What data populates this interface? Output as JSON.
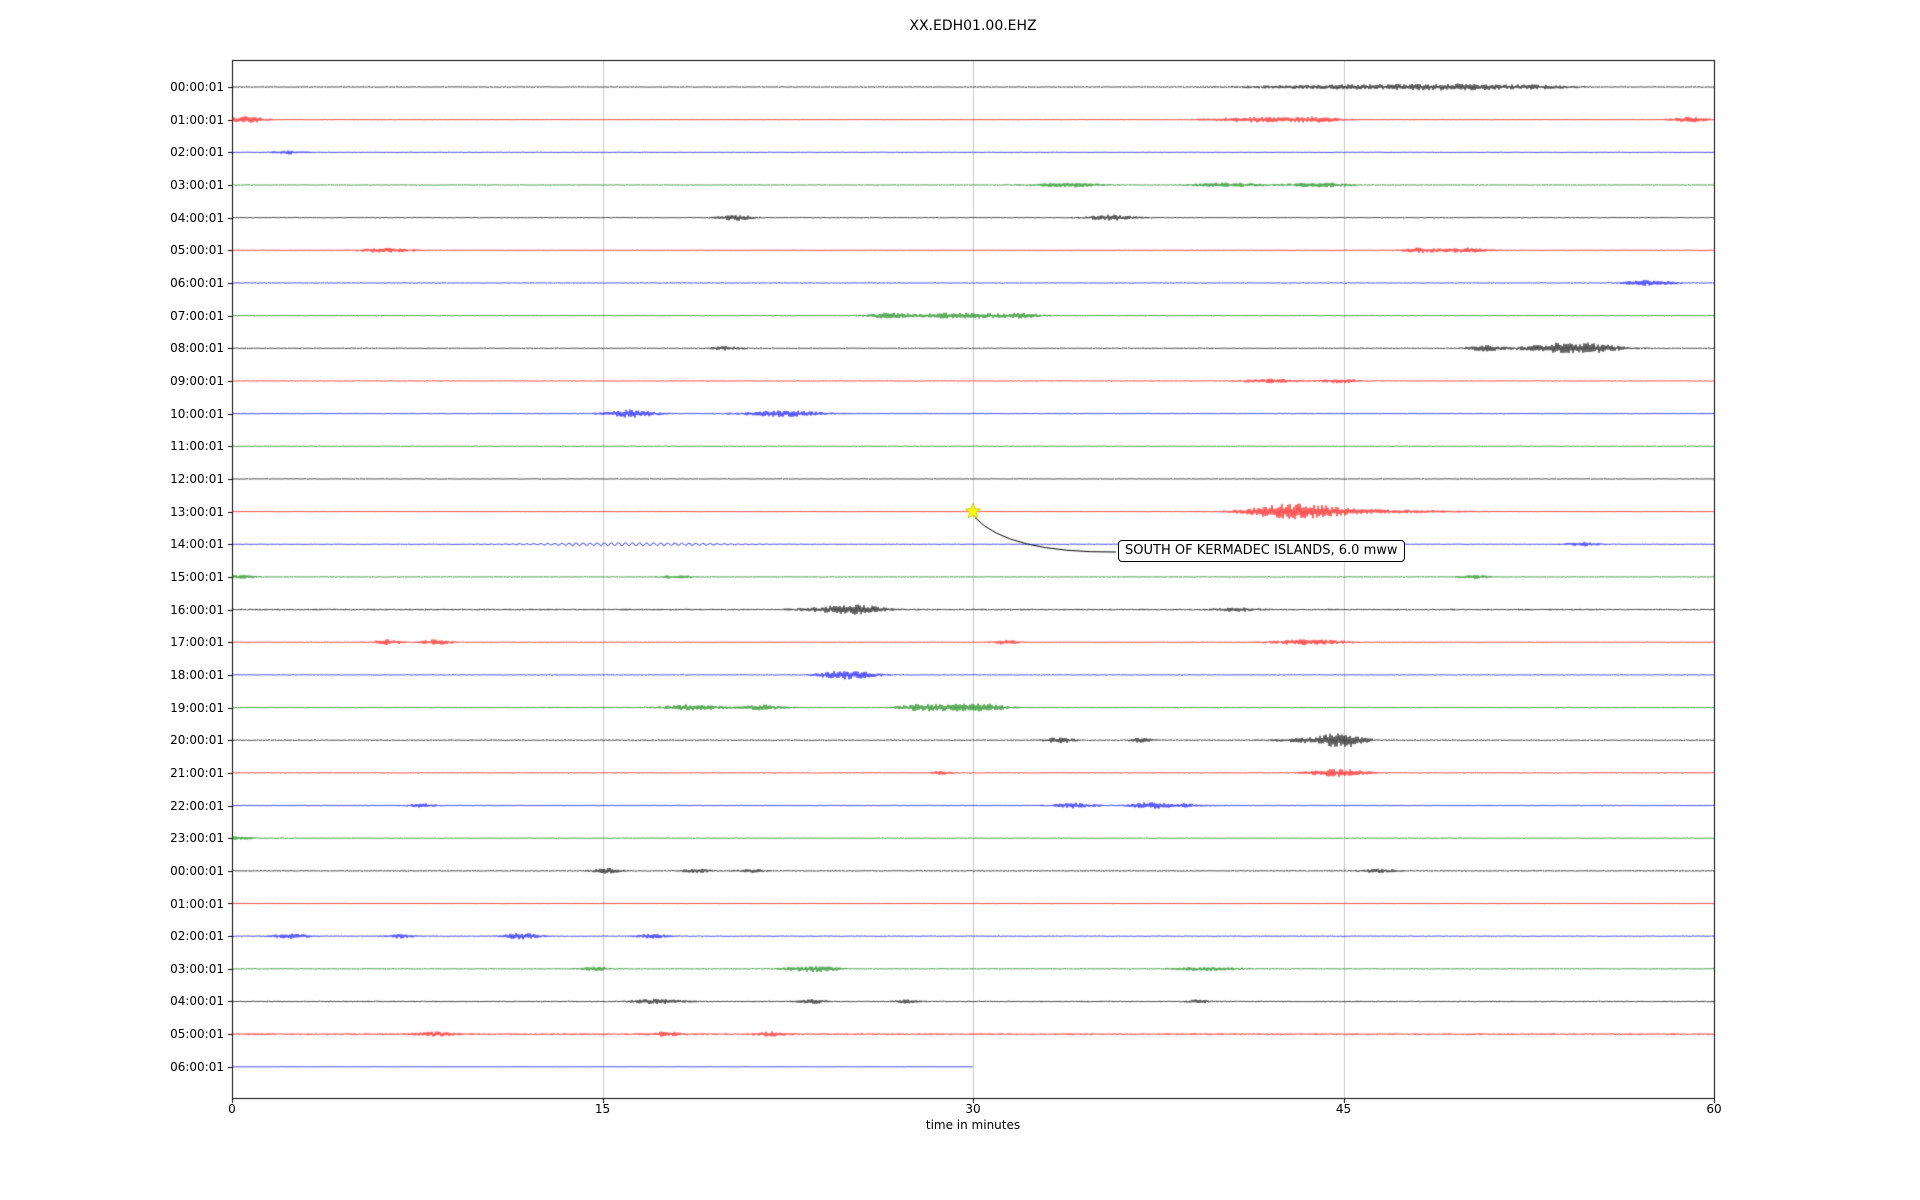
{
  "figure": {
    "title": "XX.EDH01.00.EHZ"
  },
  "chart_data": {
    "type": "line",
    "subtype": "seismogram-dayplot",
    "title": "XX.EDH01.00.EHZ",
    "xlabel": "time in minutes",
    "xlim": [
      0,
      60
    ],
    "x_ticks": [
      "0",
      "15",
      "30",
      "45",
      "60"
    ],
    "x_tick_minutes": [
      0,
      15,
      30,
      45,
      60
    ],
    "gridlines_x": [
      15,
      30,
      45
    ],
    "grid": true,
    "legend": false,
    "trace_color_cycle": [
      "#000000",
      "#ff0000",
      "#0000ff",
      "#008000"
    ],
    "annotation": {
      "text": "SOUTH OF KERMADEC ISLANDS, 6.0 mww",
      "trace": "13:00:01",
      "row_index": 13,
      "minute": 30,
      "marker": "yellow-star",
      "marker_color": "#ffff00"
    },
    "rows": [
      {
        "label": "00:00:01",
        "color": "#000000",
        "noise": 0.6,
        "end": 60,
        "events": [
          {
            "t": 46.5,
            "d": 3.5,
            "a": 2.2
          },
          {
            "t": 50,
            "d": 1.5,
            "a": 1.6
          },
          {
            "t": 53,
            "d": 1,
            "a": 1.2
          }
        ]
      },
      {
        "label": "01:00:01",
        "color": "#ff0000",
        "noise": 0.6,
        "end": 60,
        "events": [
          {
            "t": 0.6,
            "d": 0.5,
            "a": 3
          },
          {
            "t": 41.3,
            "d": 1.2,
            "a": 2.2
          },
          {
            "t": 43.8,
            "d": 0.8,
            "a": 2.4
          },
          {
            "t": 59,
            "d": 0.5,
            "a": 2.4
          }
        ]
      },
      {
        "label": "02:00:01",
        "color": "#0000ff",
        "noise": 0.6,
        "end": 60,
        "events": [
          {
            "t": 2.3,
            "d": 0.5,
            "a": 1.6
          }
        ]
      },
      {
        "label": "03:00:01",
        "color": "#008000",
        "noise": 0.6,
        "end": 60,
        "events": [
          {
            "t": 33.8,
            "d": 1,
            "a": 2
          },
          {
            "t": 40.3,
            "d": 1,
            "a": 2
          },
          {
            "t": 44,
            "d": 0.9,
            "a": 2.2
          }
        ]
      },
      {
        "label": "04:00:01",
        "color": "#000000",
        "noise": 0.6,
        "end": 60,
        "events": [
          {
            "t": 20.4,
            "d": 0.5,
            "a": 2.6
          },
          {
            "t": 35.6,
            "d": 0.7,
            "a": 2.6
          }
        ]
      },
      {
        "label": "05:00:01",
        "color": "#ff0000",
        "noise": 0.6,
        "end": 60,
        "events": [
          {
            "t": 6.2,
            "d": 0.8,
            "a": 2
          },
          {
            "t": 48.1,
            "d": 0.5,
            "a": 2.2
          },
          {
            "t": 50,
            "d": 0.7,
            "a": 2.2
          }
        ]
      },
      {
        "label": "06:00:01",
        "color": "#0000ff",
        "noise": 0.6,
        "end": 60,
        "events": [
          {
            "t": 57.4,
            "d": 0.7,
            "a": 2.6
          }
        ]
      },
      {
        "label": "07:00:01",
        "color": "#008000",
        "noise": 0.6,
        "end": 60,
        "events": [
          {
            "t": 26.5,
            "d": 0.6,
            "a": 2.2
          },
          {
            "t": 29.5,
            "d": 1.4,
            "a": 2.6
          },
          {
            "t": 32,
            "d": 0.5,
            "a": 1.8
          }
        ]
      },
      {
        "label": "08:00:01",
        "color": "#000000",
        "noise": 0.6,
        "end": 60,
        "events": [
          {
            "t": 20,
            "d": 0.5,
            "a": 1.6
          },
          {
            "t": 50.7,
            "d": 0.5,
            "a": 2.6
          },
          {
            "t": 54.3,
            "d": 1.2,
            "a": 6
          }
        ]
      },
      {
        "label": "09:00:01",
        "color": "#ff0000",
        "noise": 0.6,
        "end": 60,
        "events": [
          {
            "t": 42,
            "d": 0.8,
            "a": 1.8
          },
          {
            "t": 44.9,
            "d": 0.6,
            "a": 1.8
          }
        ]
      },
      {
        "label": "10:00:01",
        "color": "#0000ff",
        "noise": 0.6,
        "end": 60,
        "events": [
          {
            "t": 16.2,
            "d": 0.7,
            "a": 3.6
          },
          {
            "t": 22.3,
            "d": 1.1,
            "a": 3
          }
        ]
      },
      {
        "label": "11:00:01",
        "color": "#008000",
        "noise": 0.55,
        "end": 60,
        "events": []
      },
      {
        "label": "12:00:01",
        "color": "#000000",
        "noise": 0.55,
        "end": 60,
        "events": []
      },
      {
        "label": "13:00:01",
        "color": "#ff0000",
        "noise": 0.6,
        "end": 60,
        "events": [
          {
            "t": 43,
            "d": 1.3,
            "a": 7
          },
          {
            "t": 45.8,
            "d": 2.5,
            "a": 1.6
          }
        ]
      },
      {
        "label": "14:00:01",
        "color": "#0000ff",
        "noise": 0.6,
        "end": 60,
        "events": [
          {
            "t": 16,
            "d": 3,
            "a": 1.4,
            "w": true
          },
          {
            "t": 54.7,
            "d": 0.5,
            "a": 1.6
          }
        ]
      },
      {
        "label": "15:00:01",
        "color": "#008000",
        "noise": 0.6,
        "end": 60,
        "events": [
          {
            "t": 0.4,
            "d": 0.4,
            "a": 1.6
          },
          {
            "t": 18,
            "d": 0.5,
            "a": 1.4
          },
          {
            "t": 50.3,
            "d": 0.5,
            "a": 1.5
          }
        ]
      },
      {
        "label": "16:00:01",
        "color": "#000000",
        "noise": 0.8,
        "end": 60,
        "events": [
          {
            "t": 24.6,
            "d": 1,
            "a": 3
          },
          {
            "t": 25.6,
            "d": 0.6,
            "a": 2.4
          },
          {
            "t": 40.6,
            "d": 0.6,
            "a": 1.6
          }
        ]
      },
      {
        "label": "17:00:01",
        "color": "#ff0000",
        "noise": 0.6,
        "end": 60,
        "events": [
          {
            "t": 6.3,
            "d": 0.4,
            "a": 2.6
          },
          {
            "t": 8.3,
            "d": 0.4,
            "a": 2.6
          },
          {
            "t": 31.3,
            "d": 0.4,
            "a": 1.8
          },
          {
            "t": 43.6,
            "d": 1,
            "a": 2.6
          }
        ]
      },
      {
        "label": "18:00:01",
        "color": "#0000ff",
        "noise": 0.6,
        "end": 60,
        "events": [
          {
            "t": 24.9,
            "d": 0.8,
            "a": 4
          }
        ]
      },
      {
        "label": "19:00:01",
        "color": "#008000",
        "noise": 0.65,
        "end": 60,
        "events": [
          {
            "t": 18.7,
            "d": 0.8,
            "a": 3
          },
          {
            "t": 21.5,
            "d": 0.6,
            "a": 2.2
          },
          {
            "t": 27.8,
            "d": 0.6,
            "a": 2.2
          },
          {
            "t": 29.3,
            "d": 1,
            "a": 3
          },
          {
            "t": 30.6,
            "d": 0.5,
            "a": 2.2
          }
        ]
      },
      {
        "label": "20:00:01",
        "color": "#000000",
        "noise": 0.7,
        "end": 60,
        "events": [
          {
            "t": 33.5,
            "d": 0.4,
            "a": 2.6
          },
          {
            "t": 36.8,
            "d": 0.3,
            "a": 2
          },
          {
            "t": 43.8,
            "d": 1,
            "a": 2.2
          },
          {
            "t": 45,
            "d": 0.6,
            "a": 6.5
          }
        ]
      },
      {
        "label": "21:00:01",
        "color": "#ff0000",
        "noise": 0.6,
        "end": 60,
        "events": [
          {
            "t": 28.8,
            "d": 0.3,
            "a": 1.8
          },
          {
            "t": 44.8,
            "d": 0.8,
            "a": 3.6
          }
        ]
      },
      {
        "label": "22:00:01",
        "color": "#0000ff",
        "noise": 0.6,
        "end": 60,
        "events": [
          {
            "t": 7.7,
            "d": 0.4,
            "a": 1.6
          },
          {
            "t": 34.1,
            "d": 0.6,
            "a": 2.4
          },
          {
            "t": 37,
            "d": 0.5,
            "a": 1.8
          },
          {
            "t": 38.1,
            "d": 0.8,
            "a": 2
          }
        ]
      },
      {
        "label": "23:00:01",
        "color": "#008000",
        "noise": 0.55,
        "end": 60,
        "events": [
          {
            "t": 0.3,
            "d": 0.4,
            "a": 1.6
          }
        ]
      },
      {
        "label": "00:00:01",
        "color": "#000000",
        "noise": 0.7,
        "end": 60,
        "events": [
          {
            "t": 15.2,
            "d": 0.4,
            "a": 2.2
          },
          {
            "t": 18.8,
            "d": 0.4,
            "a": 1.6
          },
          {
            "t": 21,
            "d": 0.4,
            "a": 1.6
          },
          {
            "t": 46.4,
            "d": 0.5,
            "a": 1.6
          }
        ]
      },
      {
        "label": "01:00:01",
        "color": "#ff0000",
        "noise": 0.6,
        "end": 60,
        "events": []
      },
      {
        "label": "02:00:01",
        "color": "#0000ff",
        "noise": 0.7,
        "end": 60,
        "events": [
          {
            "t": 2.4,
            "d": 0.5,
            "a": 2
          },
          {
            "t": 6.8,
            "d": 0.4,
            "a": 1.6
          },
          {
            "t": 11.7,
            "d": 0.5,
            "a": 2.6
          },
          {
            "t": 17,
            "d": 0.4,
            "a": 2.2
          }
        ]
      },
      {
        "label": "03:00:01",
        "color": "#008000",
        "noise": 0.65,
        "end": 60,
        "events": [
          {
            "t": 14.7,
            "d": 0.4,
            "a": 2
          },
          {
            "t": 23.5,
            "d": 0.7,
            "a": 3
          },
          {
            "t": 39.5,
            "d": 0.9,
            "a": 1.8
          }
        ]
      },
      {
        "label": "04:00:01",
        "color": "#000000",
        "noise": 0.7,
        "end": 60,
        "events": [
          {
            "t": 17.2,
            "d": 0.7,
            "a": 2.2
          },
          {
            "t": 23.5,
            "d": 0.4,
            "a": 1.8
          },
          {
            "t": 27.3,
            "d": 0.3,
            "a": 1.6
          },
          {
            "t": 39.1,
            "d": 0.3,
            "a": 1.6
          }
        ]
      },
      {
        "label": "05:00:01",
        "color": "#ff0000",
        "noise": 1.0,
        "end": 60,
        "events": [
          {
            "t": 8.2,
            "d": 0.5,
            "a": 1.8
          },
          {
            "t": 17.6,
            "d": 0.4,
            "a": 1.8
          },
          {
            "t": 21.8,
            "d": 0.4,
            "a": 1.8
          }
        ]
      },
      {
        "label": "06:00:01",
        "color": "#0000ff",
        "noise": 0.2,
        "end": 30,
        "events": []
      }
    ]
  }
}
